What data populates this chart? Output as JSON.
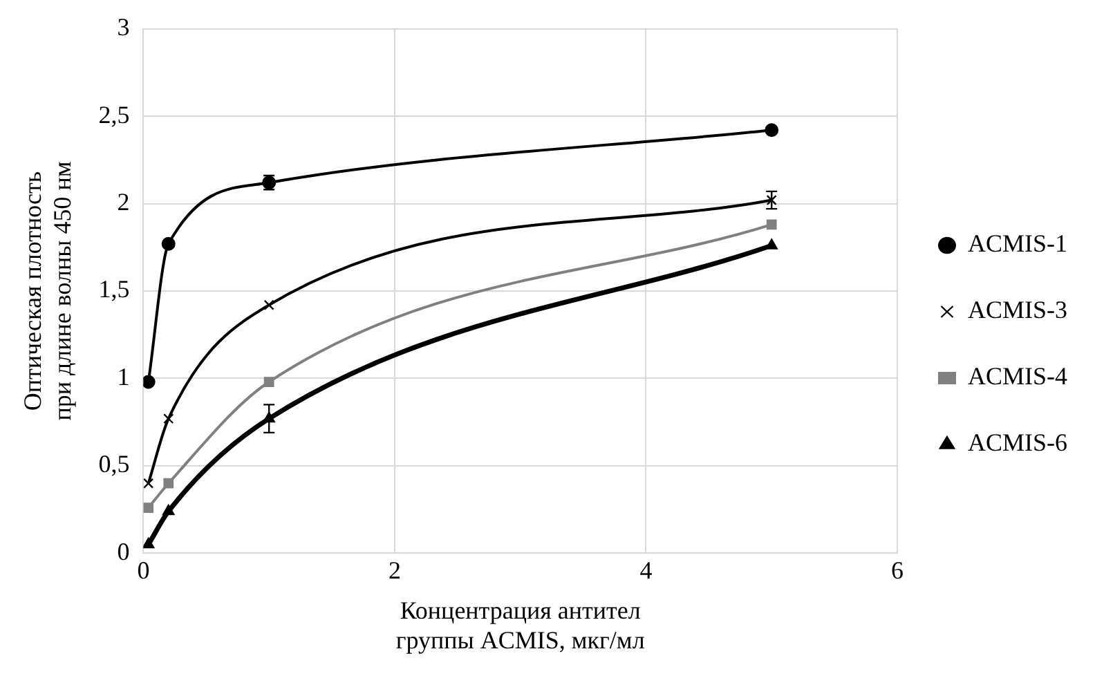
{
  "chart_data": {
    "type": "line",
    "xlabel": "Концентрация антител группы ACMIS, мкг/мл",
    "ylabel": "Оптическая плотность при длине волны 450 нм",
    "x": [
      0.04,
      0.2,
      1,
      5
    ],
    "xlim": [
      0,
      6
    ],
    "xticks": [
      0,
      2,
      4,
      6
    ],
    "ylim": [
      0,
      3
    ],
    "yticks": [
      0,
      {
        "value": 0.5,
        "label": "0,5"
      },
      1,
      {
        "value": 1.5,
        "label": "1,5"
      },
      2,
      {
        "value": 2.5,
        "label": "2,5"
      },
      3
    ],
    "grid": true,
    "legend": "right",
    "line_style": "solid",
    "series": [
      {
        "name": "ACMIS-1",
        "color": "#000000",
        "marker": "circle",
        "values": [
          0.98,
          1.77,
          2.12,
          2.42
        ],
        "errors": [
          null,
          null,
          0.04,
          null
        ]
      },
      {
        "name": "ACMIS-3",
        "color": "#000000",
        "marker": "cross",
        "values": [
          0.4,
          0.77,
          1.42,
          2.02
        ],
        "errors": [
          null,
          null,
          null,
          0.05
        ]
      },
      {
        "name": "ACMIS-4",
        "color": "#808080",
        "marker": "square",
        "values": [
          0.26,
          0.4,
          0.98,
          1.88
        ]
      },
      {
        "name": "ACMIS-6",
        "color": "#000000",
        "marker": "triangle",
        "values": [
          0.05,
          0.24,
          0.77,
          1.76
        ],
        "errors": [
          null,
          null,
          0.08,
          null
        ]
      }
    ]
  }
}
